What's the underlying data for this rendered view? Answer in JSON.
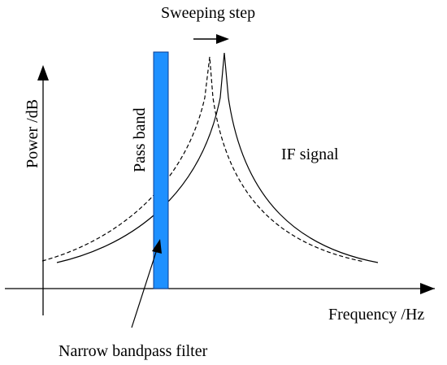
{
  "labels": {
    "sweeping_step": "Sweeping step",
    "power_axis": "Power /dB",
    "pass_band": "Pass band",
    "if_signal": "IF signal",
    "frequency_axis": "Frequency /Hz",
    "filter": "Narrow bandpass filter"
  },
  "colors": {
    "pass_band_fill": "#1E90FF",
    "pass_band_stroke": "#0B3D91",
    "ink": "#000000"
  }
}
